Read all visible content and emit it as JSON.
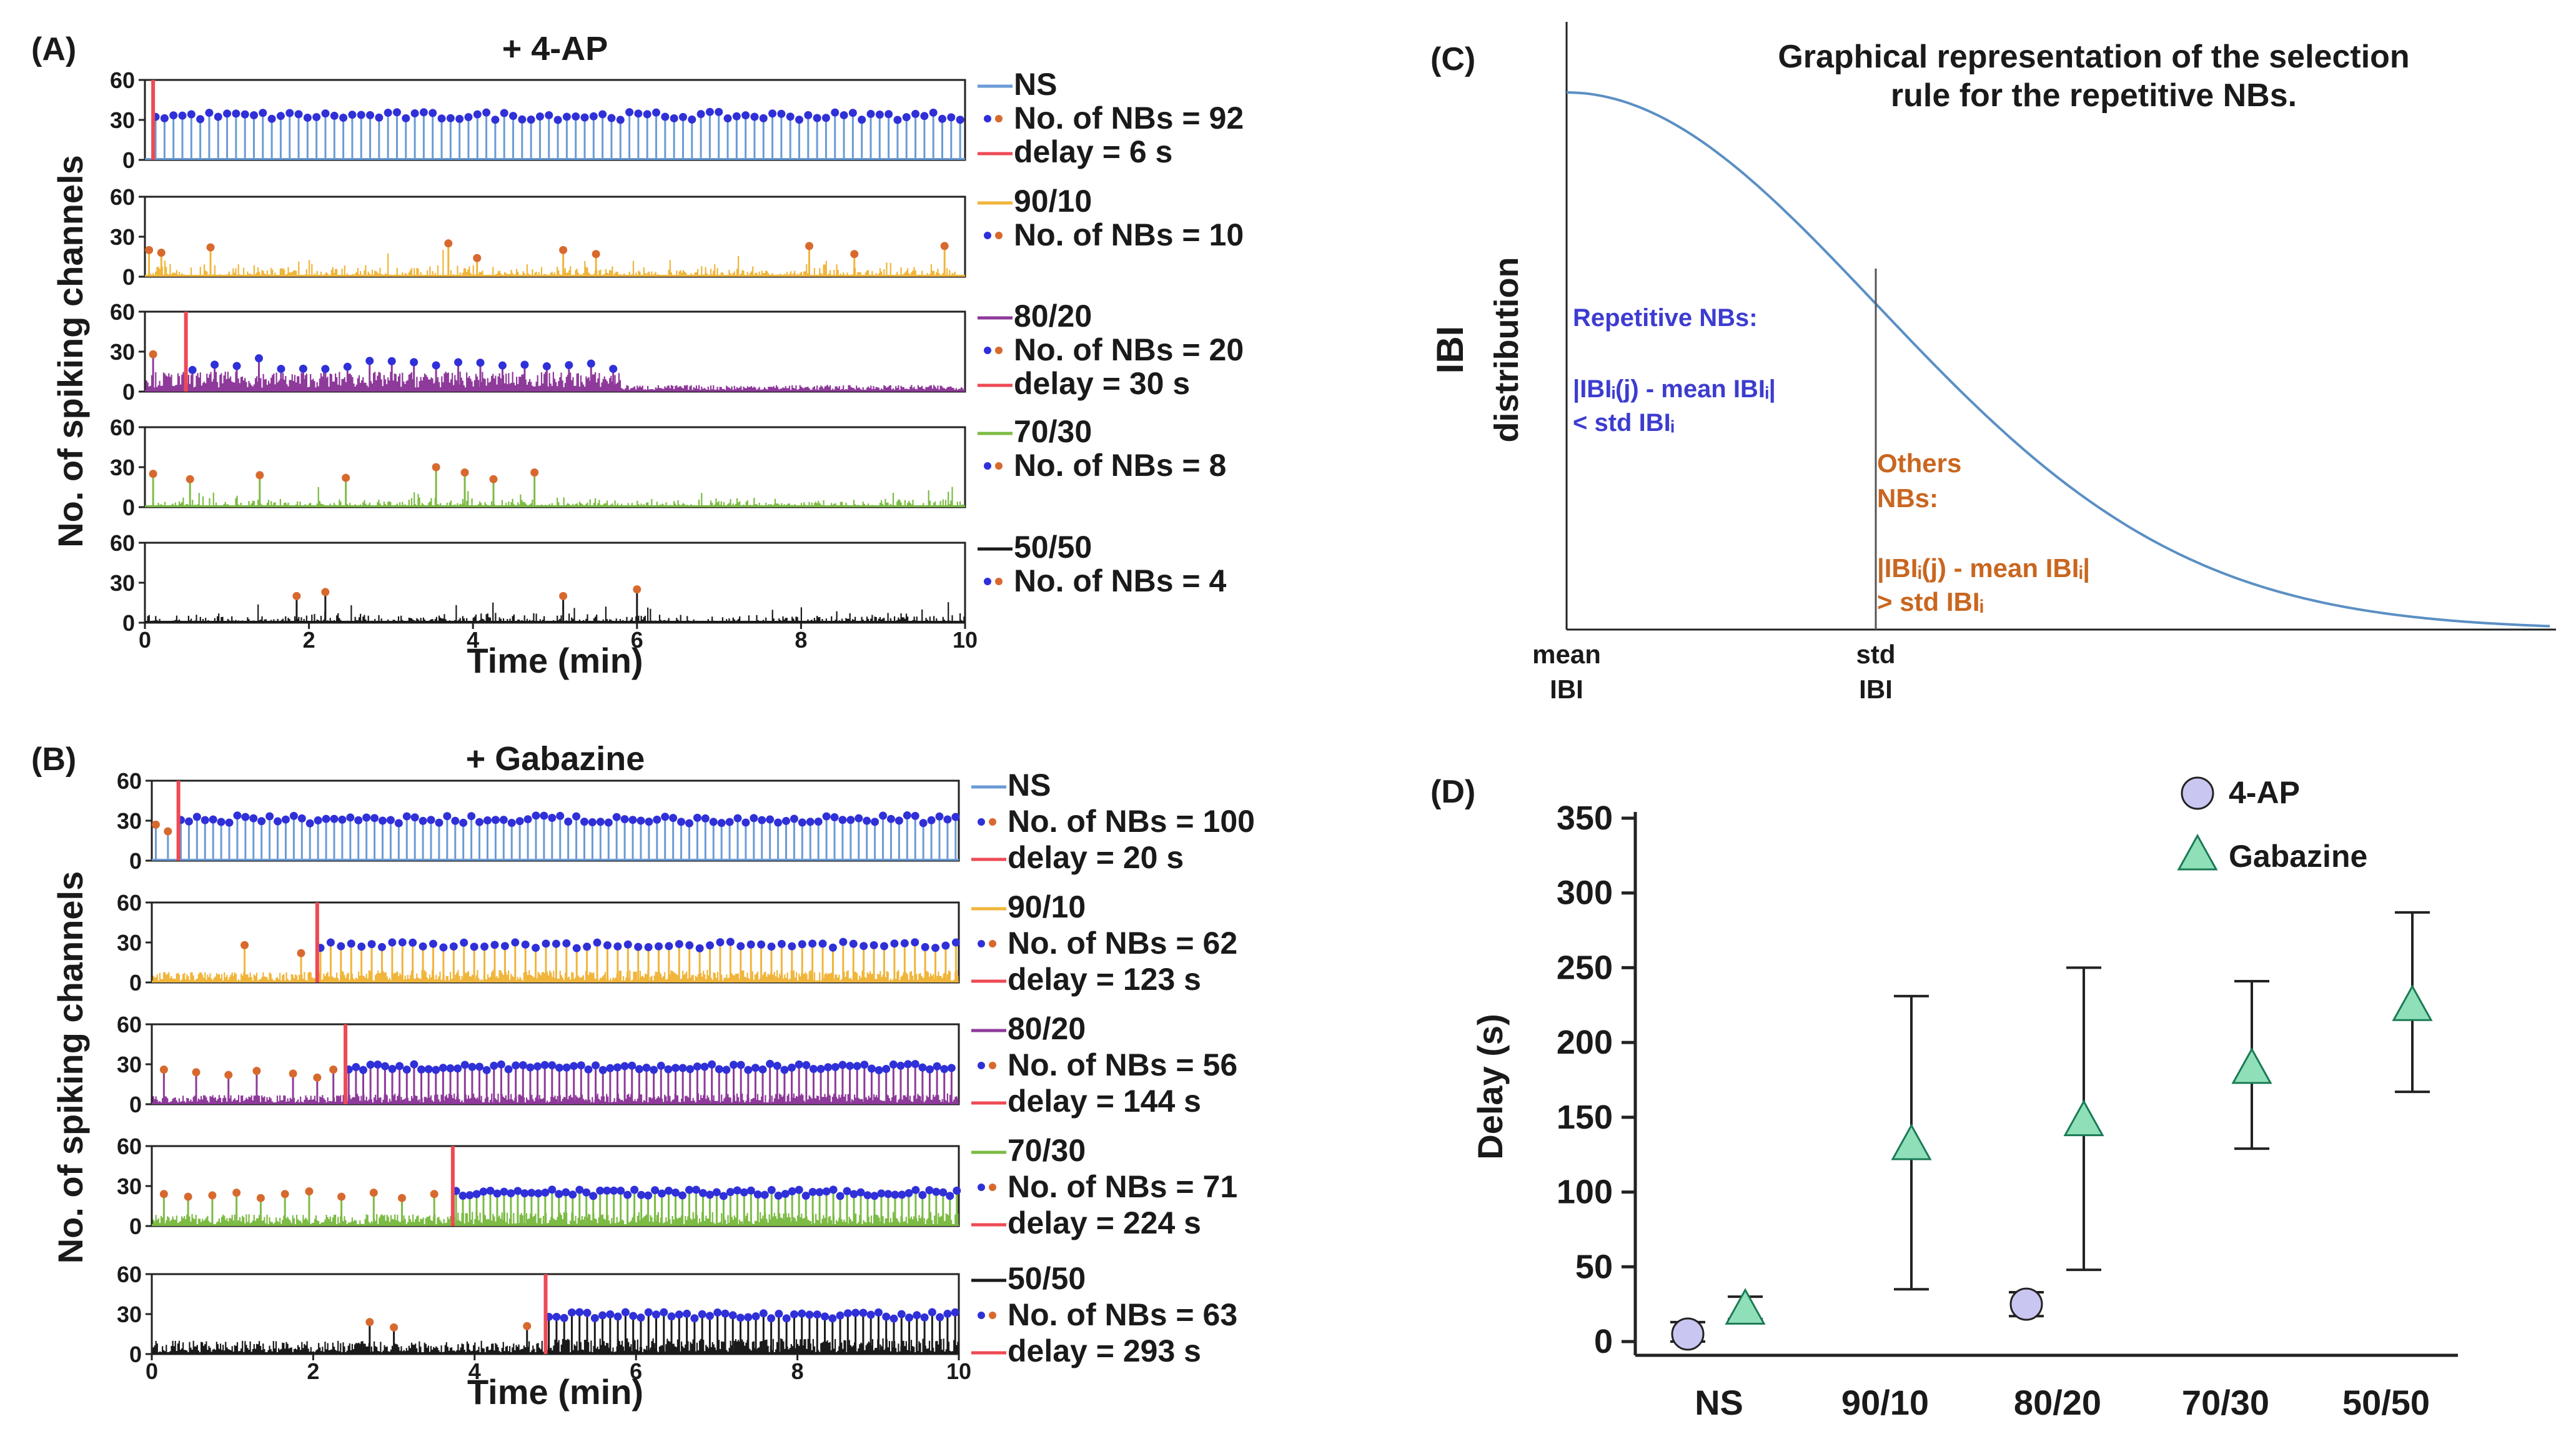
{
  "figure": {
    "panel_labels": {
      "A": "(A)",
      "B": "(B)",
      "C": "(C)",
      "D": "(D)"
    },
    "colors": {
      "NS": "#6a9bd6",
      "90/10": "#f0b53a",
      "80/20": "#8e3a9a",
      "70/30": "#7cbb44",
      "50/50": "#1a1a1a",
      "repetitive_dot": "#3030d8",
      "other_dot": "#d8692e",
      "delay_line": "#ee4a54",
      "curve": "#5a8fc4",
      "circle_fill": "#c9c6f2",
      "triangle_fill": "#8fe0b8",
      "text_blue": "#3c3cd0",
      "text_orange": "#c9661f"
    }
  },
  "chart_data": [
    {
      "type": "stem",
      "panel": "A",
      "title": "+ 4-AP",
      "ylabel": "No. of spiking channels",
      "xlabel": "Time (min)",
      "xlim": [
        0,
        10
      ],
      "ylim": [
        0,
        60
      ],
      "xticks": [
        "0",
        "2",
        "4",
        "6",
        "8",
        "10"
      ],
      "yticks": [
        "60",
        "30",
        "0"
      ],
      "rows": [
        {
          "condition": "NS",
          "nbs_label": "No. of NBs = 92",
          "delay_label": "delay = 6 s",
          "delay_min": 0.1,
          "regime": "regular",
          "spacing": 0.109,
          "height": 33,
          "noise": 0
        },
        {
          "condition": "90/10",
          "nbs_label": "No. of NBs = 10",
          "delay_label": "",
          "delay_min": null,
          "regime": "sparse",
          "peaks": [
            0.05,
            0.2,
            0.8,
            3.7,
            4.05,
            5.1,
            5.5,
            8.1,
            8.65,
            9.75
          ],
          "peak_heights": [
            20,
            18,
            22,
            25,
            14,
            20,
            17,
            23,
            17,
            23
          ],
          "noise": 10
        },
        {
          "condition": "80/20",
          "nbs_label": "No. of NBs = 20",
          "delay_label": "delay = 30 s",
          "delay_min": 0.5,
          "regime": "early",
          "dense_end": 5.8,
          "spacing": 0.27,
          "height": 21,
          "noise": 8,
          "peaks": [
            0.1
          ],
          "peak_heights": [
            28
          ]
        },
        {
          "condition": "70/30",
          "nbs_label": "No. of NBs = 8",
          "delay_label": "",
          "delay_min": null,
          "regime": "sparse",
          "peaks": [
            0.1,
            0.55,
            1.4,
            2.45,
            3.55,
            3.9,
            4.25,
            4.75
          ],
          "peak_heights": [
            25,
            21,
            24,
            22,
            30,
            26,
            21,
            26
          ],
          "noise": 8
        },
        {
          "condition": "50/50",
          "nbs_label": "No. of NBs = 4",
          "delay_label": "",
          "delay_min": null,
          "regime": "sparse",
          "peaks": [
            1.85,
            2.2,
            5.1,
            6.0
          ],
          "peak_heights": [
            20,
            23,
            20,
            25
          ],
          "noise": 8
        }
      ]
    },
    {
      "type": "stem",
      "panel": "B",
      "title": "+ Gabazine",
      "ylabel": "No. of spiking channels",
      "xlabel": "Time (min)",
      "xlim": [
        0,
        10
      ],
      "ylim": [
        0,
        60
      ],
      "xticks": [
        "0",
        "2",
        "4",
        "6",
        "8",
        "10"
      ],
      "yticks": [
        "60",
        "30",
        "0"
      ],
      "rows": [
        {
          "condition": "NS",
          "nbs_label": "No. of NBs = 100",
          "delay_label": "delay = 20 s",
          "delay_min": 0.33,
          "regime": "regular",
          "spacing": 0.1,
          "height": 31,
          "noise": 0,
          "pre_peaks": [
            0.05,
            0.2
          ],
          "pre_heights": [
            27,
            22
          ]
        },
        {
          "condition": "90/10",
          "nbs_label": "No. of NBs = 62",
          "delay_label": "delay = 123 s",
          "delay_min": 2.05,
          "regime": "onset",
          "spacing": 0.127,
          "height": 28,
          "noise": 7,
          "pre_peaks": [
            1.15,
            1.85
          ],
          "pre_heights": [
            28,
            22
          ]
        },
        {
          "condition": "80/20",
          "nbs_label": "No. of NBs = 56",
          "delay_label": "delay = 144 s",
          "delay_min": 2.4,
          "regime": "onset",
          "spacing": 0.09,
          "height": 28,
          "noise": 6,
          "pre_peaks": [
            0.15,
            0.55,
            0.95,
            1.3,
            1.75,
            2.05,
            2.25
          ],
          "pre_heights": [
            26,
            24,
            22,
            25,
            23,
            20,
            26
          ]
        },
        {
          "condition": "70/30",
          "nbs_label": "No. of NBs = 71",
          "delay_label": "delay = 224 s",
          "delay_min": 3.73,
          "regime": "onset",
          "spacing": 0.085,
          "height": 25,
          "noise": 8,
          "pre_peaks": [
            0.15,
            0.45,
            0.75,
            1.05,
            1.35,
            1.65,
            1.95,
            2.35,
            2.75,
            3.1,
            3.5
          ],
          "pre_heights": [
            24,
            22,
            23,
            25,
            21,
            24,
            26,
            22,
            25,
            21,
            24
          ]
        },
        {
          "condition": "50/50",
          "nbs_label": "No. of NBs = 63",
          "delay_label": "delay = 293 s",
          "delay_min": 4.88,
          "regime": "onset",
          "spacing": 0.095,
          "height": 29,
          "noise": 9,
          "pre_peaks": [
            2.7,
            3.0,
            4.65
          ],
          "pre_heights": [
            24,
            20,
            21
          ]
        }
      ]
    },
    {
      "type": "line",
      "panel": "C",
      "title": "Graphical representation of the selection rule for the repetitive NBs.",
      "title_lines": [
        "Graphical representation of the selection",
        "rule for the repetitive NBs."
      ],
      "ylabel_lines": [
        "IBI",
        "distribution"
      ],
      "xticks": [
        {
          "x": 0,
          "lines": [
            "mean",
            "IBI"
          ]
        },
        {
          "x": 1,
          "lines": [
            "std",
            "IBI"
          ]
        }
      ],
      "curve": "half-gaussian (mean IBI at x=0, std IBI at x=1)",
      "xlim": [
        0,
        3.2
      ],
      "repetitive_text": [
        "Repetitive NBs:",
        "|IBIᵢ(j) - mean IBIᵢ|",
        "< std IBIᵢ"
      ],
      "others_text": [
        "Others",
        "NBs:",
        "|IBIᵢ(j) - mean IBIᵢ|",
        "> std IBIᵢ"
      ]
    },
    {
      "type": "scatter",
      "panel": "D",
      "ylabel": "Delay (s)",
      "categories": [
        "NS",
        "90/10",
        "80/20",
        "70/30",
        "50/50"
      ],
      "ylim": [
        0,
        350
      ],
      "yticks": [
        0,
        50,
        100,
        150,
        200,
        250,
        300,
        350
      ],
      "legend": [
        "4-AP",
        "Gabazine"
      ],
      "legend_position": "top-right",
      "series": [
        {
          "name": "4-AP",
          "marker": "circle",
          "points": [
            {
              "category": "NS",
              "value": 5,
              "low": 0,
              "high": 13
            },
            {
              "category": "80/20",
              "value": 25,
              "low": 17,
              "high": 33
            }
          ]
        },
        {
          "name": "Gabazine",
          "marker": "triangle",
          "points": [
            {
              "category": "NS",
              "value": 22,
              "low": 15,
              "high": 30
            },
            {
              "category": "90/10",
              "value": 132,
              "low": 35,
              "high": 231
            },
            {
              "category": "80/20",
              "value": 148,
              "low": 48,
              "high": 250
            },
            {
              "category": "70/30",
              "value": 183,
              "low": 129,
              "high": 241
            },
            {
              "category": "50/50",
              "value": 225,
              "low": 167,
              "high": 287
            }
          ]
        }
      ]
    }
  ]
}
